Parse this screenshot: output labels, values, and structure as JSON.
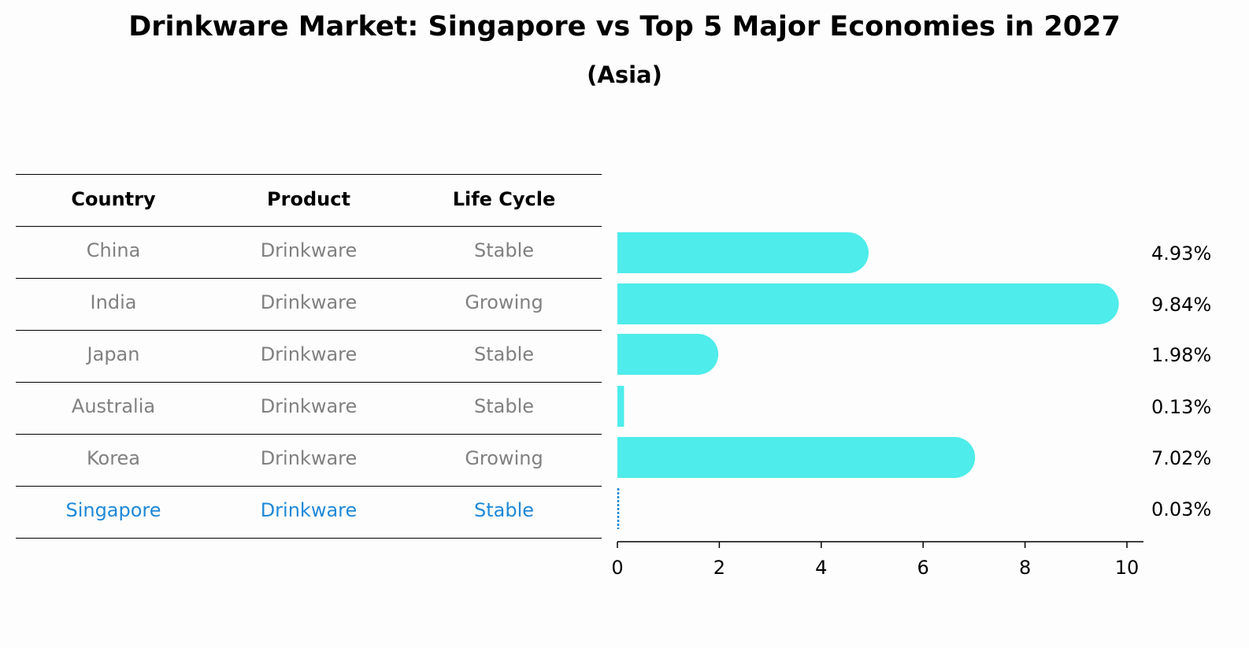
{
  "title": "Drinkware Market: Singapore vs Top 5 Major Economies in 2027",
  "subtitle": "(Asia)",
  "table": {
    "headers": [
      "Country",
      "Product",
      "Life Cycle"
    ],
    "rows": [
      [
        "China",
        "Drinkware",
        "Stable"
      ],
      [
        "India",
        "Drinkware",
        "Growing"
      ],
      [
        "Japan",
        "Drinkware",
        "Stable"
      ],
      [
        "Australia",
        "Drinkware",
        "Stable"
      ],
      [
        "Korea",
        "Drinkware",
        "Growing"
      ],
      [
        "Singapore",
        "Drinkware",
        "Stable"
      ]
    ]
  },
  "chart_data": {
    "type": "bar",
    "orientation": "horizontal",
    "categories": [
      "China",
      "India",
      "Japan",
      "Australia",
      "Korea",
      "Singapore"
    ],
    "values": [
      4.93,
      9.84,
      1.98,
      0.13,
      7.02,
      0.03
    ],
    "value_labels": [
      "4.93%",
      "9.84%",
      "1.98%",
      "0.13%",
      "7.02%",
      "0.03%"
    ],
    "xlim": [
      0,
      10
    ],
    "xticks": [
      0,
      2,
      4,
      6,
      8,
      10
    ],
    "grid": false,
    "colors": {
      "bar": "#4eecea",
      "highlight": "#1e88d8",
      "muted_text": "#808080"
    }
  }
}
